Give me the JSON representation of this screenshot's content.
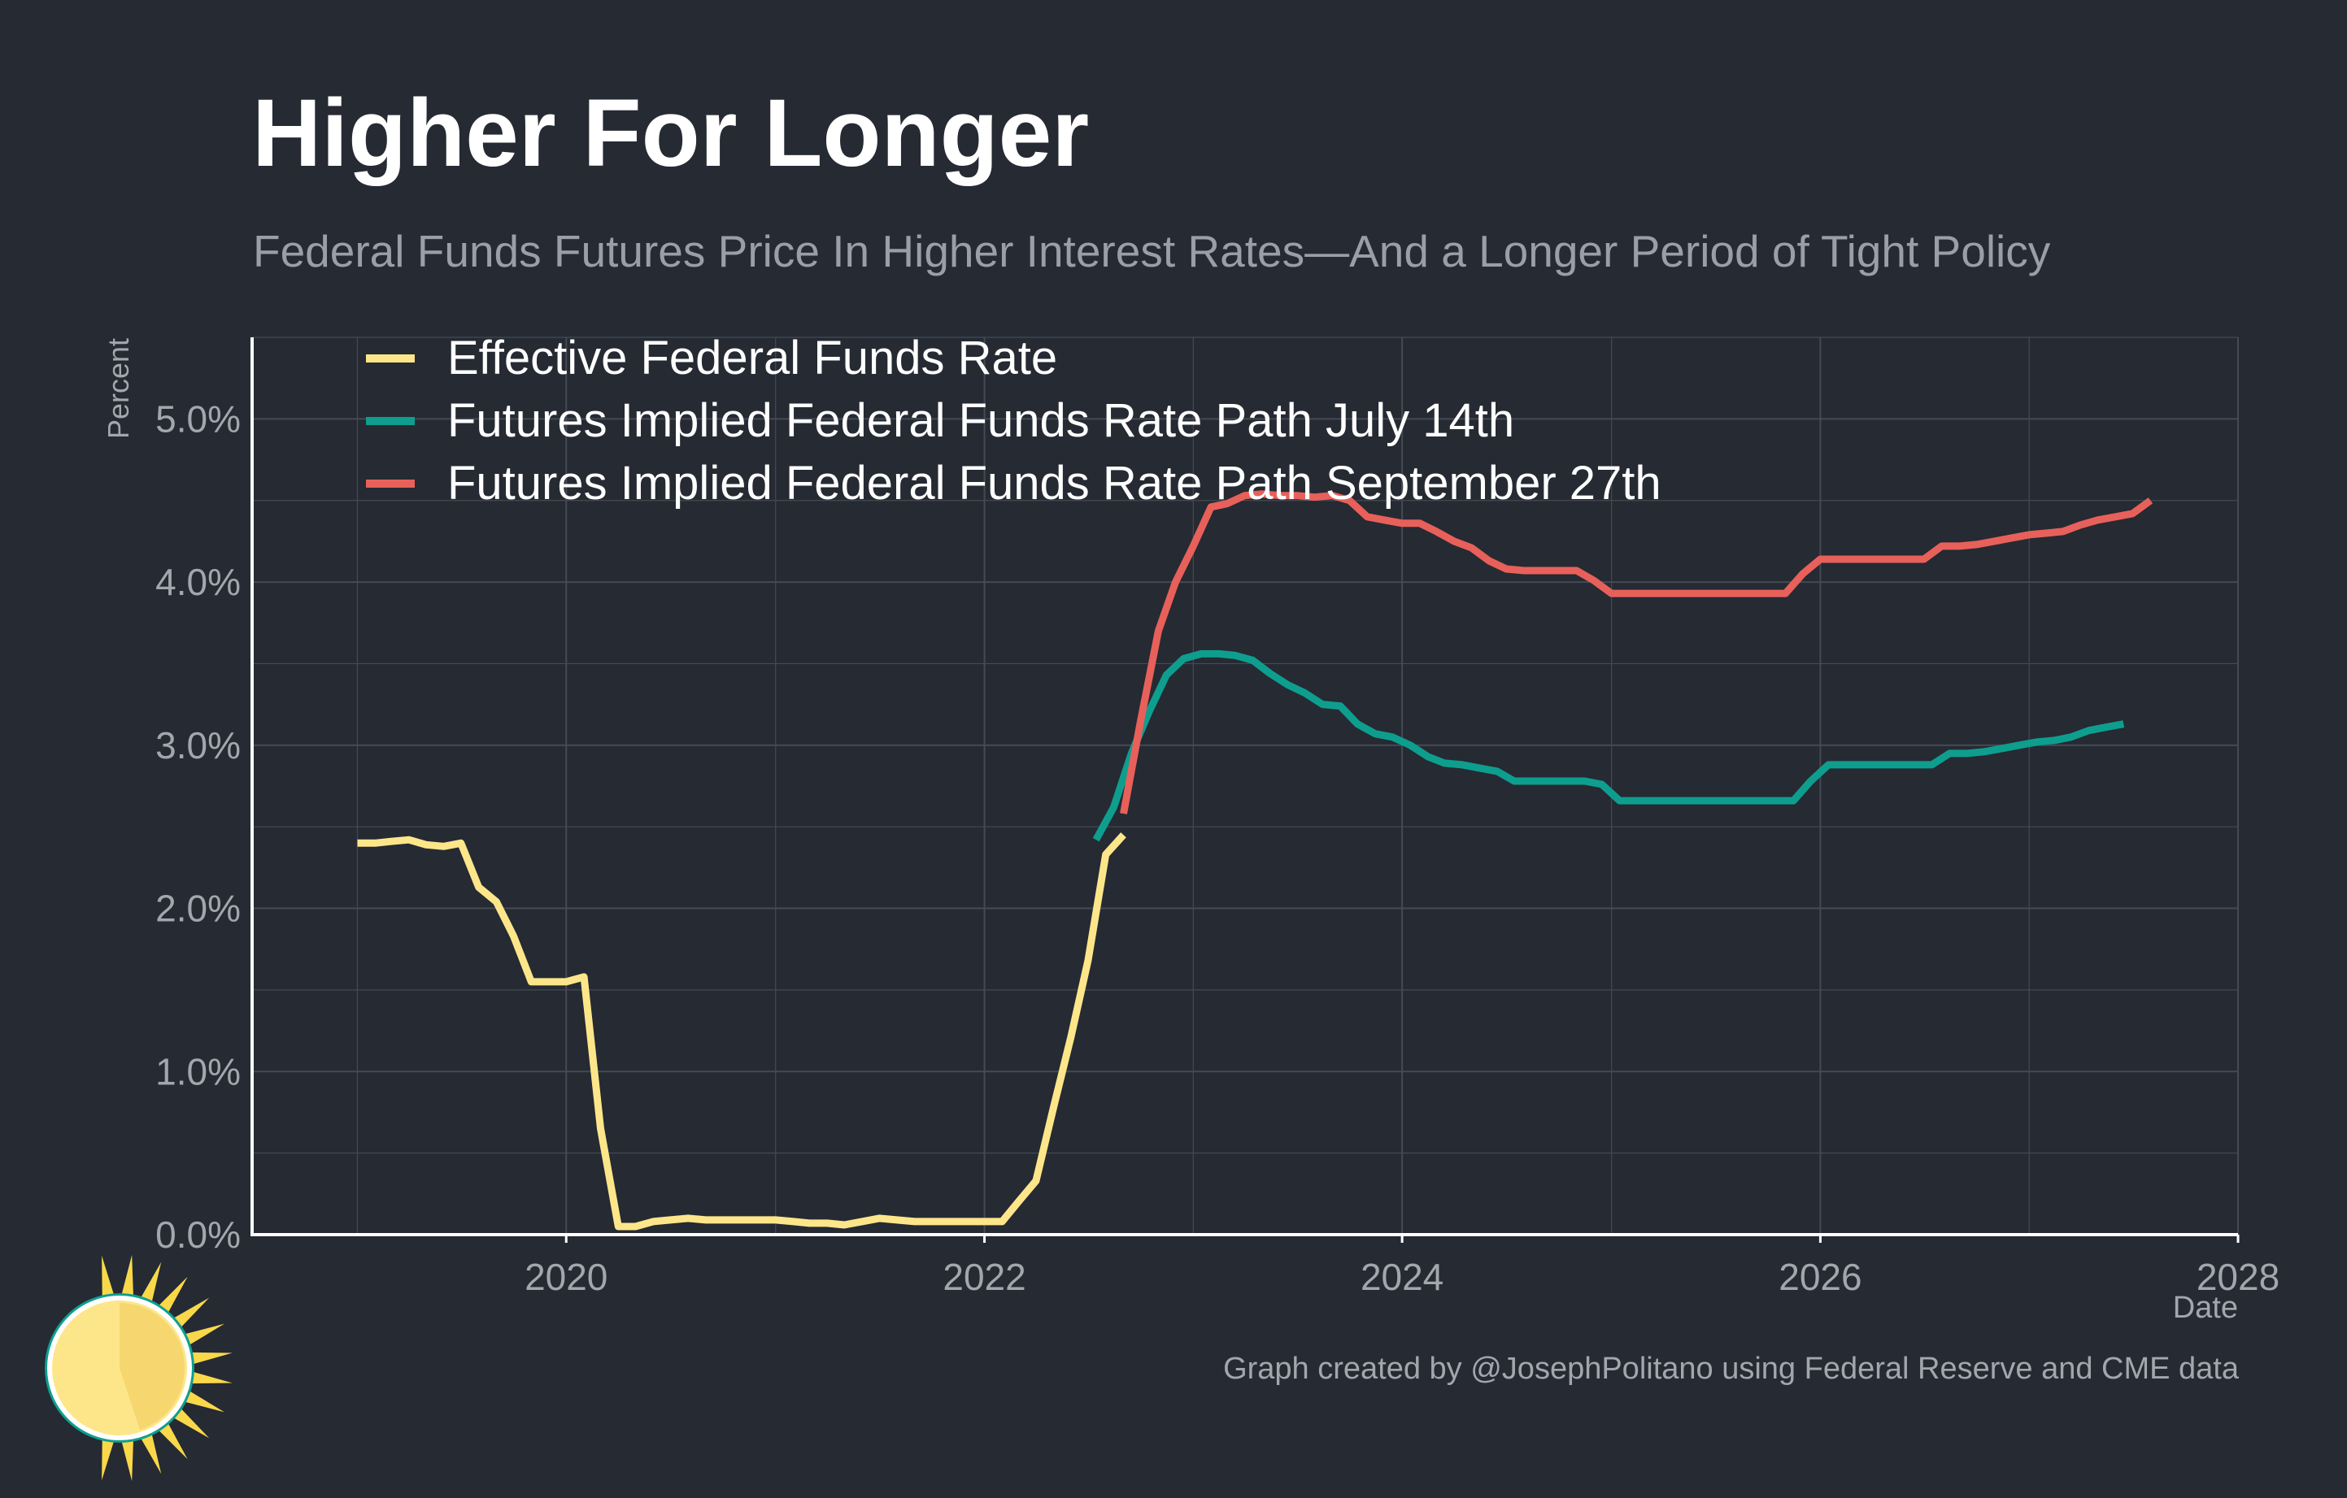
{
  "title": "Higher For Longer",
  "subtitle": "Federal Funds Futures Price In Higher Interest Rates—And a Longer Period of Tight Policy",
  "credit": "Graph created by @JosephPolitano using Federal Reserve and CME data",
  "colors": {
    "background": "#252a33",
    "grid": "#454a53",
    "axis": "#ffffff",
    "tick_text": "#a3a6ad",
    "legend_text": "#ffffff"
  },
  "logo": {
    "icon": "sun-icon"
  },
  "chart_data": {
    "type": "line",
    "xlabel": "Date",
    "ylabel": "Percent",
    "xlim": [
      "2018-07-01",
      "2028-01-01"
    ],
    "ylim": [
      0,
      5.5
    ],
    "x_ticks": [
      {
        "value": "2020-01-01",
        "label": "2020"
      },
      {
        "value": "2022-01-01",
        "label": "2022"
      },
      {
        "value": "2024-01-01",
        "label": "2024"
      },
      {
        "value": "2026-01-01",
        "label": "2026"
      },
      {
        "value": "2028-01-01",
        "label": "2028"
      }
    ],
    "y_ticks": [
      {
        "value": 0,
        "label": "0.0%"
      },
      {
        "value": 1,
        "label": "1.0%"
      },
      {
        "value": 2,
        "label": "2.0%"
      },
      {
        "value": 3,
        "label": "3.0%"
      },
      {
        "value": 4,
        "label": "4.0%"
      },
      {
        "value": 5,
        "label": "5.0%"
      }
    ],
    "grid": true,
    "legend_position": "top-left",
    "series": [
      {
        "name": "Effective Federal Funds Rate",
        "color": "#fde68a",
        "points": [
          [
            "2019-01-01",
            2.4
          ],
          [
            "2019-02-01",
            2.4
          ],
          [
            "2019-03-01",
            2.41
          ],
          [
            "2019-04-01",
            2.42
          ],
          [
            "2019-05-01",
            2.39
          ],
          [
            "2019-06-01",
            2.38
          ],
          [
            "2019-07-01",
            2.4
          ],
          [
            "2019-08-01",
            2.13
          ],
          [
            "2019-09-01",
            2.04
          ],
          [
            "2019-10-01",
            1.83
          ],
          [
            "2019-11-01",
            1.55
          ],
          [
            "2019-12-01",
            1.55
          ],
          [
            "2020-01-01",
            1.55
          ],
          [
            "2020-02-01",
            1.58
          ],
          [
            "2020-03-01",
            0.65
          ],
          [
            "2020-04-01",
            0.05
          ],
          [
            "2020-05-01",
            0.05
          ],
          [
            "2020-06-01",
            0.08
          ],
          [
            "2020-07-01",
            0.09
          ],
          [
            "2020-08-01",
            0.1
          ],
          [
            "2020-09-01",
            0.09
          ],
          [
            "2020-10-01",
            0.09
          ],
          [
            "2020-11-01",
            0.09
          ],
          [
            "2020-12-01",
            0.09
          ],
          [
            "2021-01-01",
            0.09
          ],
          [
            "2021-02-01",
            0.08
          ],
          [
            "2021-03-01",
            0.07
          ],
          [
            "2021-04-01",
            0.07
          ],
          [
            "2021-05-01",
            0.06
          ],
          [
            "2021-06-01",
            0.08
          ],
          [
            "2021-07-01",
            0.1
          ],
          [
            "2021-08-01",
            0.09
          ],
          [
            "2021-09-01",
            0.08
          ],
          [
            "2021-10-01",
            0.08
          ],
          [
            "2021-11-01",
            0.08
          ],
          [
            "2021-12-01",
            0.08
          ],
          [
            "2022-01-01",
            0.08
          ],
          [
            "2022-02-01",
            0.08
          ],
          [
            "2022-03-01",
            0.2
          ],
          [
            "2022-04-01",
            0.33
          ],
          [
            "2022-05-01",
            0.77
          ],
          [
            "2022-06-01",
            1.21
          ],
          [
            "2022-07-01",
            1.68
          ],
          [
            "2022-08-01",
            2.33
          ],
          [
            "2022-09-01",
            2.45
          ]
        ]
      },
      {
        "name": "Futures Implied Federal Funds Rate Path July 14th",
        "color": "#0e9e8e",
        "points": [
          [
            "2022-07-15",
            2.42
          ],
          [
            "2022-08-15",
            2.62
          ],
          [
            "2022-09-15",
            2.95
          ],
          [
            "2022-10-15",
            3.2
          ],
          [
            "2022-11-15",
            3.43
          ],
          [
            "2022-12-15",
            3.53
          ],
          [
            "2023-01-15",
            3.56
          ],
          [
            "2023-02-15",
            3.56
          ],
          [
            "2023-03-15",
            3.55
          ],
          [
            "2023-04-15",
            3.52
          ],
          [
            "2023-05-15",
            3.44
          ],
          [
            "2023-06-15",
            3.37
          ],
          [
            "2023-07-15",
            3.32
          ],
          [
            "2023-08-15",
            3.25
          ],
          [
            "2023-09-15",
            3.24
          ],
          [
            "2023-10-15",
            3.13
          ],
          [
            "2023-11-15",
            3.07
          ],
          [
            "2023-12-15",
            3.05
          ],
          [
            "2024-01-15",
            3.0
          ],
          [
            "2024-02-15",
            2.93
          ],
          [
            "2024-03-15",
            2.89
          ],
          [
            "2024-04-15",
            2.88
          ],
          [
            "2024-05-15",
            2.86
          ],
          [
            "2024-06-15",
            2.84
          ],
          [
            "2024-07-15",
            2.78
          ],
          [
            "2024-08-15",
            2.78
          ],
          [
            "2024-09-15",
            2.78
          ],
          [
            "2024-10-15",
            2.78
          ],
          [
            "2024-11-15",
            2.78
          ],
          [
            "2024-12-15",
            2.76
          ],
          [
            "2025-01-15",
            2.66
          ],
          [
            "2025-02-15",
            2.66
          ],
          [
            "2025-03-15",
            2.66
          ],
          [
            "2025-04-15",
            2.66
          ],
          [
            "2025-05-15",
            2.66
          ],
          [
            "2025-06-15",
            2.66
          ],
          [
            "2025-07-15",
            2.66
          ],
          [
            "2025-08-15",
            2.66
          ],
          [
            "2025-09-15",
            2.66
          ],
          [
            "2025-10-15",
            2.66
          ],
          [
            "2025-11-15",
            2.66
          ],
          [
            "2025-12-15",
            2.78
          ],
          [
            "2026-01-15",
            2.88
          ],
          [
            "2026-02-15",
            2.88
          ],
          [
            "2026-03-15",
            2.88
          ],
          [
            "2026-04-15",
            2.88
          ],
          [
            "2026-05-15",
            2.88
          ],
          [
            "2026-06-15",
            2.88
          ],
          [
            "2026-07-15",
            2.88
          ],
          [
            "2026-08-15",
            2.95
          ],
          [
            "2026-09-15",
            2.95
          ],
          [
            "2026-10-15",
            2.96
          ],
          [
            "2026-11-15",
            2.98
          ],
          [
            "2026-12-15",
            3.0
          ],
          [
            "2027-01-15",
            3.02
          ],
          [
            "2027-02-15",
            3.03
          ],
          [
            "2027-03-15",
            3.05
          ],
          [
            "2027-04-15",
            3.09
          ],
          [
            "2027-05-15",
            3.11
          ],
          [
            "2027-06-15",
            3.13
          ]
        ]
      },
      {
        "name": "Futures Implied Federal Funds Rate Path September 27th",
        "color": "#e8605a",
        "points": [
          [
            "2022-09-01",
            2.58
          ],
          [
            "2022-10-01",
            3.15
          ],
          [
            "2022-11-01",
            3.7
          ],
          [
            "2022-12-01",
            4.0
          ],
          [
            "2023-01-01",
            4.22
          ],
          [
            "2023-02-01",
            4.46
          ],
          [
            "2023-03-01",
            4.48
          ],
          [
            "2023-04-01",
            4.53
          ],
          [
            "2023-05-01",
            4.54
          ],
          [
            "2023-06-01",
            4.53
          ],
          [
            "2023-07-01",
            4.53
          ],
          [
            "2023-08-01",
            4.52
          ],
          [
            "2023-09-01",
            4.53
          ],
          [
            "2023-10-01",
            4.5
          ],
          [
            "2023-11-01",
            4.4
          ],
          [
            "2023-12-01",
            4.38
          ],
          [
            "2024-01-01",
            4.36
          ],
          [
            "2024-02-01",
            4.36
          ],
          [
            "2024-03-01",
            4.31
          ],
          [
            "2024-04-01",
            4.25
          ],
          [
            "2024-05-01",
            4.21
          ],
          [
            "2024-06-01",
            4.13
          ],
          [
            "2024-07-01",
            4.08
          ],
          [
            "2024-08-01",
            4.07
          ],
          [
            "2024-09-01",
            4.07
          ],
          [
            "2024-10-01",
            4.07
          ],
          [
            "2024-11-01",
            4.07
          ],
          [
            "2024-12-01",
            4.01
          ],
          [
            "2025-01-01",
            3.93
          ],
          [
            "2025-02-01",
            3.93
          ],
          [
            "2025-03-01",
            3.93
          ],
          [
            "2025-04-01",
            3.93
          ],
          [
            "2025-05-01",
            3.93
          ],
          [
            "2025-06-01",
            3.93
          ],
          [
            "2025-07-01",
            3.93
          ],
          [
            "2025-08-01",
            3.93
          ],
          [
            "2025-09-01",
            3.93
          ],
          [
            "2025-10-01",
            3.93
          ],
          [
            "2025-11-01",
            3.93
          ],
          [
            "2025-12-01",
            4.05
          ],
          [
            "2026-01-01",
            4.14
          ],
          [
            "2026-02-01",
            4.14
          ],
          [
            "2026-03-01",
            4.14
          ],
          [
            "2026-04-01",
            4.14
          ],
          [
            "2026-05-01",
            4.14
          ],
          [
            "2026-06-01",
            4.14
          ],
          [
            "2026-07-01",
            4.14
          ],
          [
            "2026-08-01",
            4.22
          ],
          [
            "2026-09-01",
            4.22
          ],
          [
            "2026-10-01",
            4.23
          ],
          [
            "2026-11-01",
            4.25
          ],
          [
            "2026-12-01",
            4.27
          ],
          [
            "2027-01-01",
            4.29
          ],
          [
            "2027-02-01",
            4.3
          ],
          [
            "2027-03-01",
            4.31
          ],
          [
            "2027-04-01",
            4.35
          ],
          [
            "2027-05-01",
            4.38
          ],
          [
            "2027-06-01",
            4.4
          ],
          [
            "2027-07-01",
            4.42
          ],
          [
            "2027-08-01",
            4.5
          ]
        ]
      }
    ]
  }
}
